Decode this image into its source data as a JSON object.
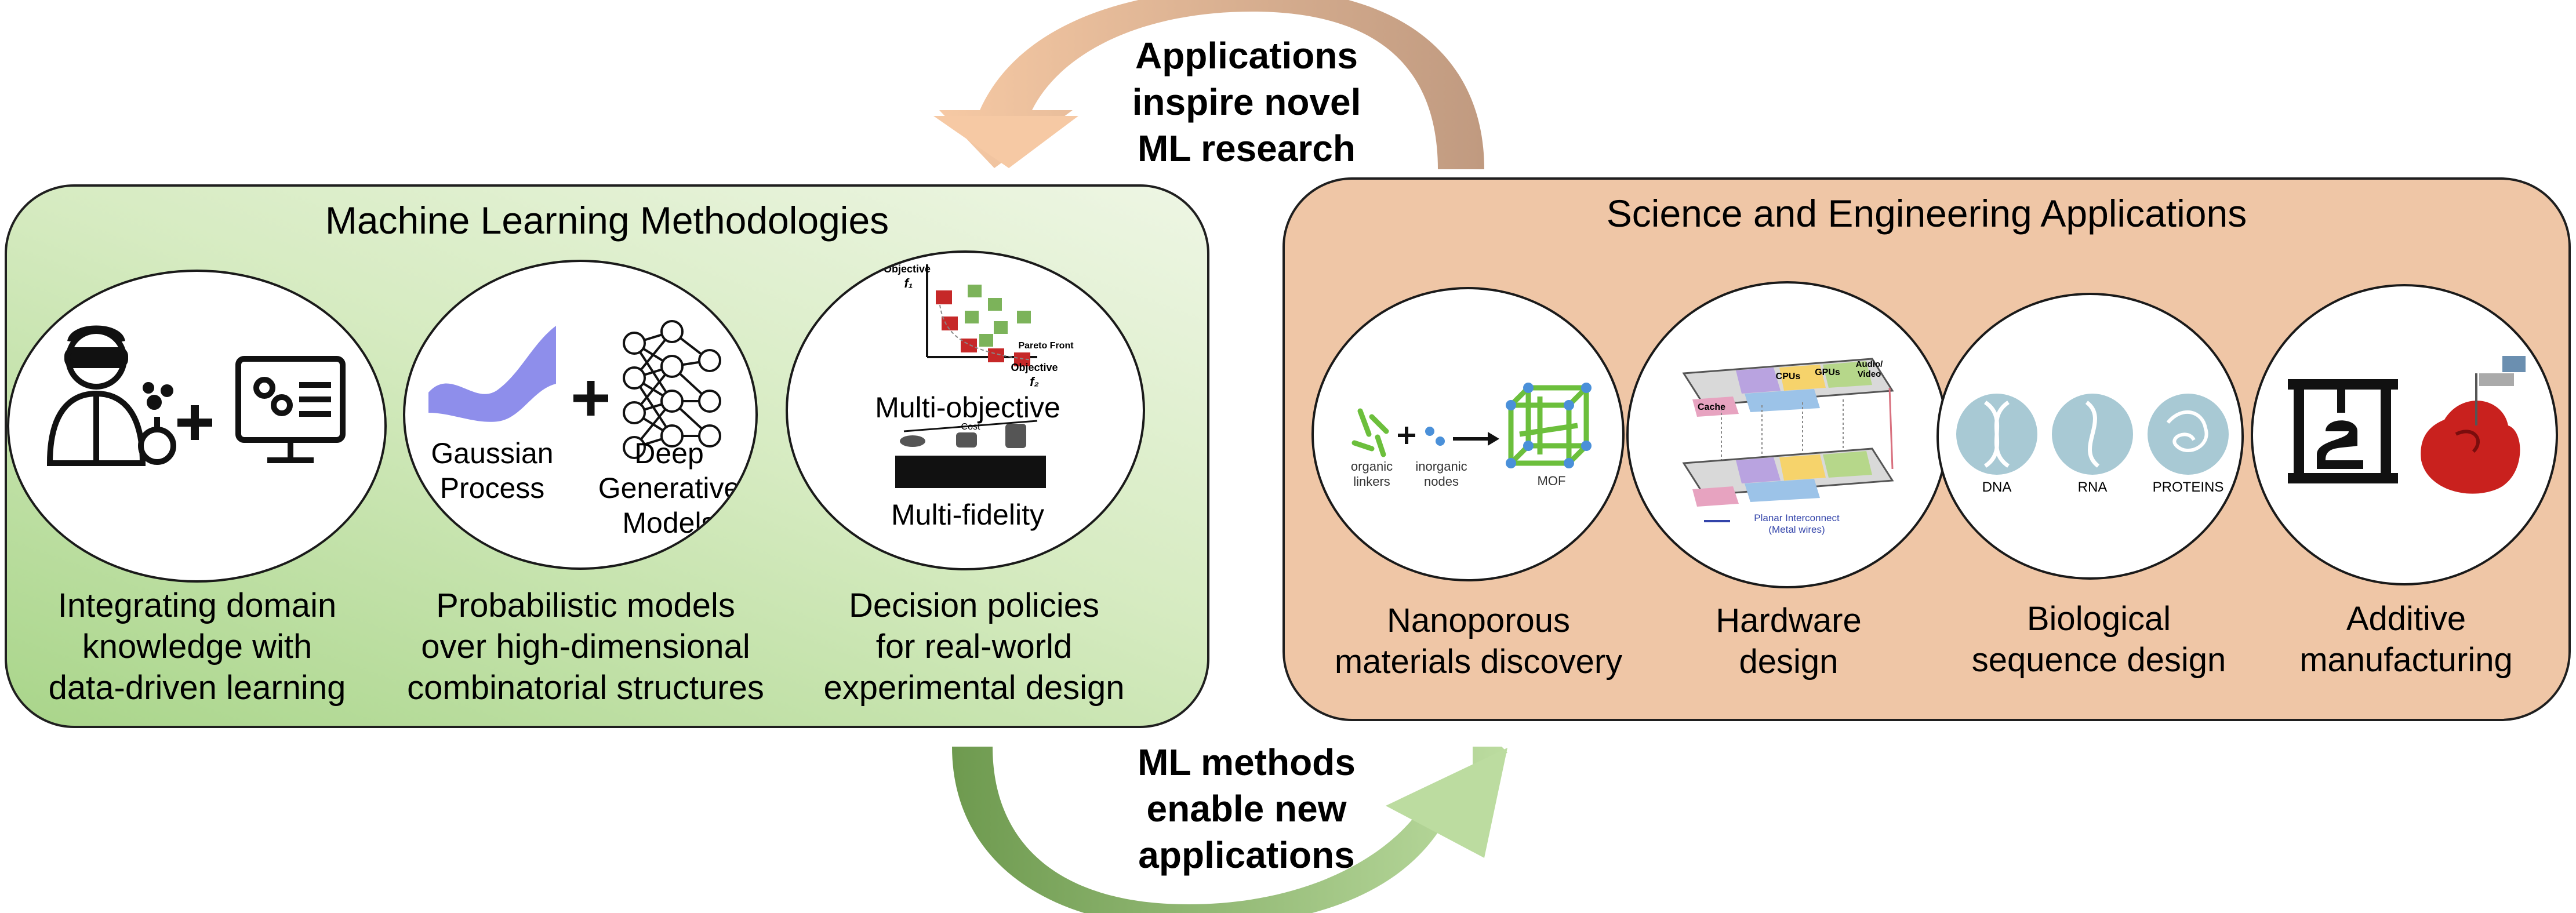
{
  "top_arrow": {
    "text": "Applications\ninspire novel\nML research",
    "color_start": "#f3c4a0",
    "color_end": "#c49a82"
  },
  "bottom_arrow": {
    "text": "ML methods\nenable new\napplications",
    "color_start": "#6f9950",
    "color_end": "#b7d99a"
  },
  "ml_panel": {
    "title": "Machine Learning Methodologies",
    "circles": [
      {
        "name": "domain-knowledge",
        "caption": "Integrating domain\nknowledge with\ndata-driven learning"
      },
      {
        "name": "probabilistic-models",
        "labels": {
          "gp": "Gaussian\nProcess",
          "dgm": "Deep\nGenerative\nModels"
        },
        "caption": "Probabilistic models\nover high-dimensional\ncombinatorial structures"
      },
      {
        "name": "decision-policies",
        "labels": {
          "objective_y": "Objective",
          "f1": "f₁",
          "objective_x": "Objective",
          "f2": "f₂",
          "pareto": "Pareto Front",
          "multi_objective": "Multi-objective",
          "cost": "Cost",
          "multi_fidelity": "Multi-fidelity"
        },
        "caption": "Decision policies\nfor real-world\nexperimental design"
      }
    ]
  },
  "sci_panel": {
    "title": "Science and Engineering Applications",
    "circles": [
      {
        "name": "nanoporous",
        "labels": {
          "organic": "organic\nlinkers",
          "inorganic": "inorganic\nnodes",
          "mof": "MOF"
        },
        "caption": "Nanoporous\nmaterials discovery"
      },
      {
        "name": "hardware",
        "labels": {
          "cpus": "CPUs",
          "gpus": "GPUs",
          "cache": "Cache",
          "audio": "Audio/\nVideo",
          "interconnect": "Planar Interconnect\n(Metal wires)"
        },
        "caption": "Hardware\ndesign"
      },
      {
        "name": "biological",
        "labels": {
          "dna": "DNA",
          "rna": "RNA",
          "proteins": "PROTEINS"
        },
        "caption": "Biological\nsequence design"
      },
      {
        "name": "additive",
        "caption": "Additive\nmanufacturing"
      }
    ]
  }
}
